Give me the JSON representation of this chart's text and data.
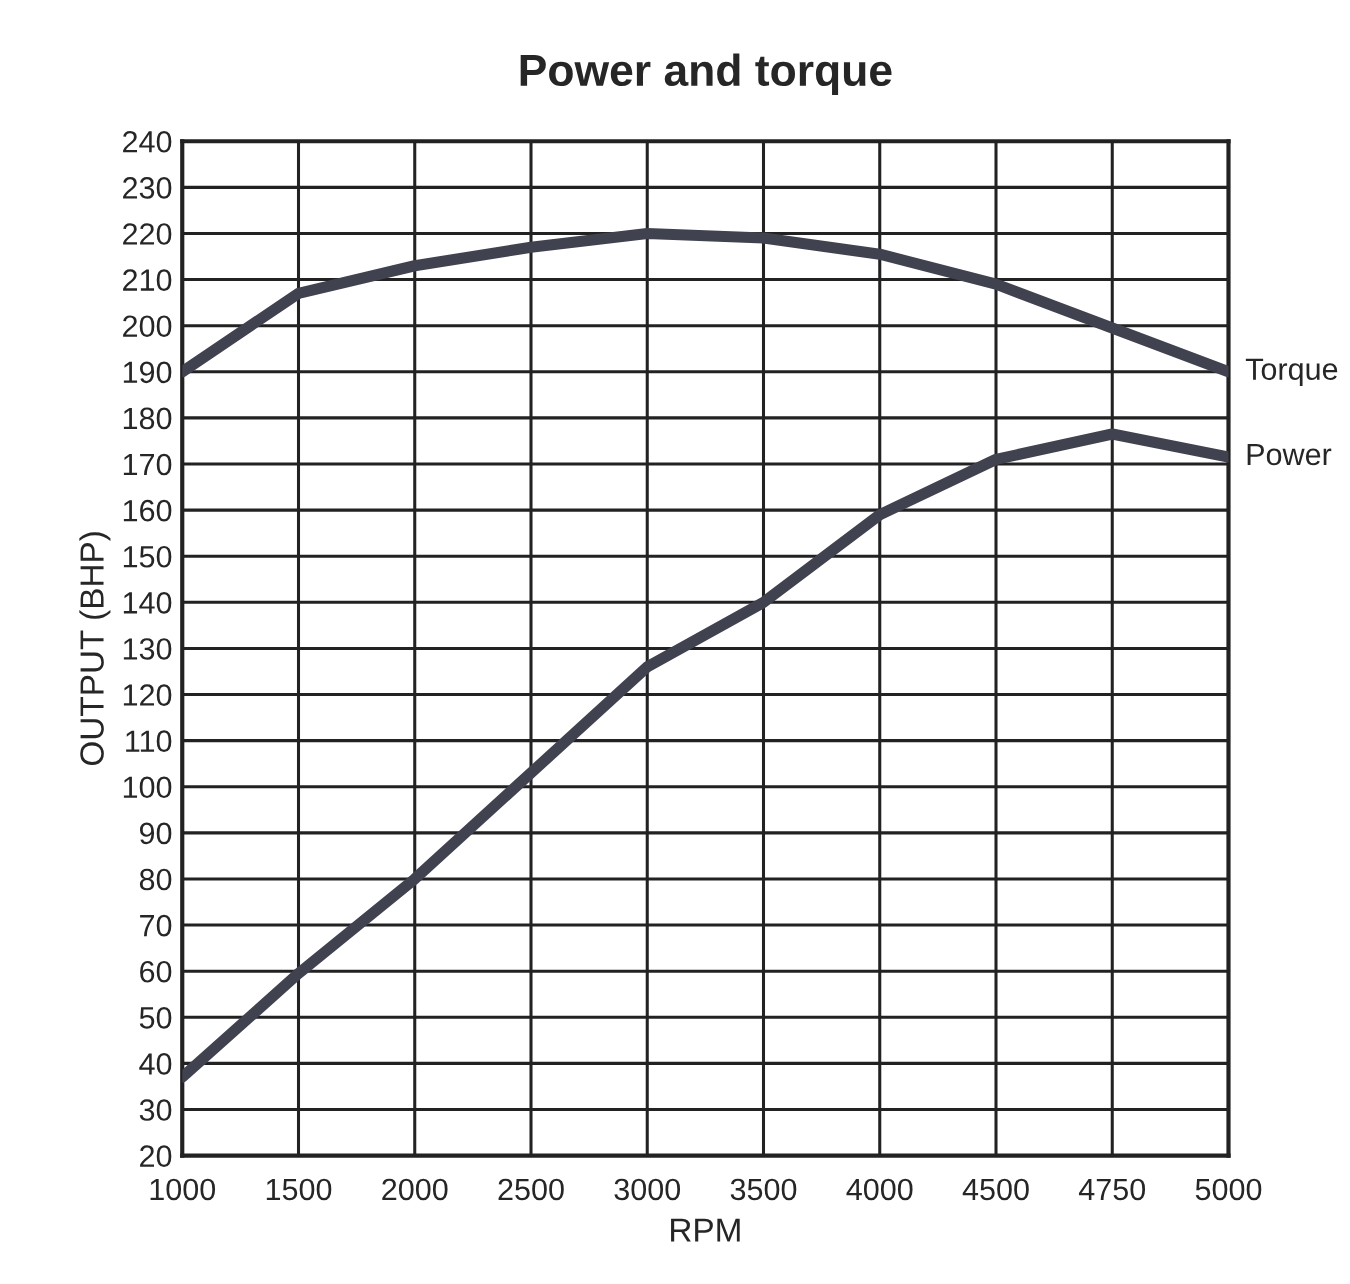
{
  "chart_data": {
    "type": "line",
    "title": "Power and torque",
    "xlabel": "RPM",
    "ylabel": "OUTPUT (BHP)",
    "categories": [
      "1000",
      "1500",
      "2000",
      "2500",
      "3000",
      "3500",
      "4000",
      "4500",
      "4750",
      "5000"
    ],
    "series": [
      {
        "name": "Torque",
        "color": "#40424f",
        "values": [
          190,
          207,
          213,
          217,
          220,
          219,
          215.5,
          209,
          199.5,
          190
        ]
      },
      {
        "name": "Power",
        "color": "#40424f",
        "values": [
          37,
          59.5,
          80,
          103,
          126,
          140,
          159,
          171,
          176.5,
          171.5
        ]
      }
    ],
    "ylim": [
      20,
      240
    ],
    "yticks": [
      20,
      30,
      40,
      50,
      60,
      70,
      80,
      90,
      100,
      110,
      120,
      130,
      140,
      150,
      160,
      170,
      180,
      190,
      200,
      210,
      220,
      230,
      240
    ],
    "grid": true,
    "marker": "none",
    "line_style": "solid"
  }
}
